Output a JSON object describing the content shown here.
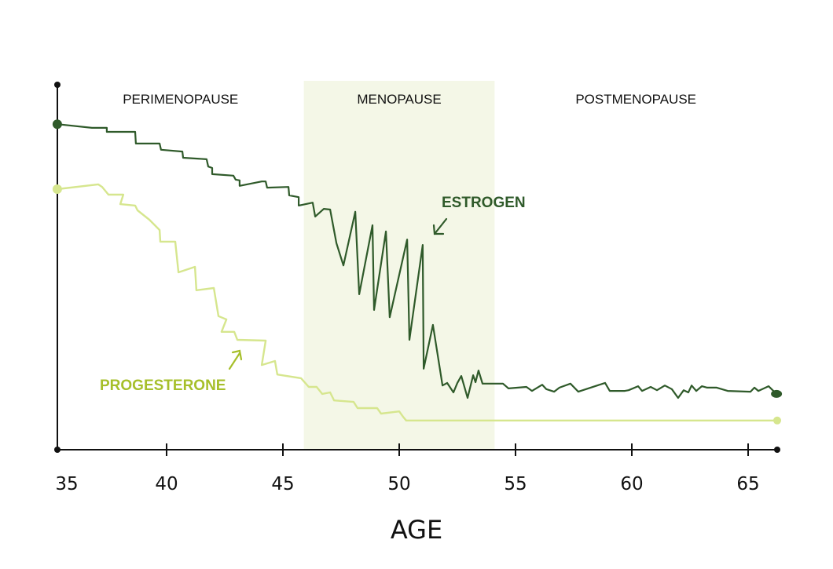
{
  "chart_data": {
    "type": "line",
    "title": "",
    "xlabel": "AGE",
    "ylabel": "",
    "xlim": [
      35.3,
      66.25
    ],
    "ylim": [
      0,
      100
    ],
    "x_ticks": [
      35,
      40,
      45,
      50,
      55,
      60,
      65
    ],
    "grid": false,
    "phases": [
      {
        "label": "PERIMENOPAUSE",
        "range": [
          35.3,
          45.9
        ],
        "shaded": false
      },
      {
        "label": "MENOPAUSE",
        "range": [
          45.9,
          54.1
        ],
        "shaded": true
      },
      {
        "label": "POSTMENOPAUSE",
        "range": [
          54.1,
          66.25
        ],
        "shaded": false
      }
    ],
    "colors": {
      "estrogen": "#2f5a2a",
      "progesterone_line": "#d6e68e",
      "progesterone_label": "#a6bf2a",
      "menopause_band": "#f4f7e7",
      "axis": "#111111"
    },
    "series": [
      {
        "name": "ESTROGEN",
        "points": [
          [
            35.3,
            89.2
          ],
          [
            36.79,
            88.2
          ],
          [
            37.43,
            88.2
          ],
          [
            37.43,
            87.1
          ],
          [
            38.65,
            87.1
          ],
          [
            38.68,
            83.9
          ],
          [
            39.7,
            83.9
          ],
          [
            39.76,
            82.2
          ],
          [
            40.68,
            81.7
          ],
          [
            40.71,
            80.0
          ],
          [
            41.72,
            79.6
          ],
          [
            41.79,
            77.6
          ],
          [
            41.96,
            77.2
          ],
          [
            41.96,
            75.5
          ],
          [
            42.87,
            75.1
          ],
          [
            42.97,
            74.0
          ],
          [
            43.14,
            73.8
          ],
          [
            43.14,
            72.3
          ],
          [
            44.09,
            73.5
          ],
          [
            44.26,
            73.5
          ],
          [
            44.32,
            71.8
          ],
          [
            45.24,
            72.0
          ],
          [
            45.27,
            69.7
          ],
          [
            45.68,
            69.2
          ],
          [
            45.68,
            66.9
          ],
          [
            46.28,
            67.7
          ],
          [
            46.39,
            63.9
          ],
          [
            46.76,
            66.0
          ],
          [
            47.03,
            65.8
          ],
          [
            47.3,
            56.6
          ],
          [
            47.6,
            50.5
          ],
          [
            48.11,
            65.2
          ],
          [
            48.28,
            42.6
          ],
          [
            48.85,
            61.5
          ],
          [
            48.92,
            38.3
          ],
          [
            49.43,
            59.8
          ],
          [
            49.59,
            36.3
          ],
          [
            50.34,
            57.6
          ],
          [
            50.44,
            30.1
          ],
          [
            51.01,
            56.1
          ],
          [
            51.05,
            22.2
          ],
          [
            51.45,
            34.2
          ],
          [
            51.86,
            17.6
          ],
          [
            52.06,
            18.3
          ],
          [
            52.33,
            15.7
          ],
          [
            52.5,
            18.3
          ],
          [
            52.67,
            20.2
          ],
          [
            52.94,
            14.2
          ],
          [
            53.18,
            20.4
          ],
          [
            53.28,
            18.5
          ],
          [
            53.41,
            21.7
          ],
          [
            53.58,
            18.1
          ],
          [
            54.46,
            18.1
          ],
          [
            54.7,
            16.8
          ],
          [
            55.47,
            17.2
          ],
          [
            55.71,
            16.1
          ],
          [
            56.15,
            17.8
          ],
          [
            56.32,
            16.6
          ],
          [
            56.66,
            15.9
          ],
          [
            56.89,
            17.0
          ],
          [
            57.36,
            18.1
          ],
          [
            57.7,
            15.9
          ],
          [
            58.85,
            18.3
          ],
          [
            59.05,
            16.1
          ],
          [
            59.7,
            16.1
          ],
          [
            59.86,
            16.3
          ],
          [
            60.27,
            17.4
          ],
          [
            60.44,
            16.1
          ],
          [
            60.81,
            17.2
          ],
          [
            61.08,
            16.3
          ],
          [
            61.42,
            17.6
          ],
          [
            61.72,
            16.6
          ],
          [
            61.99,
            14.2
          ],
          [
            62.23,
            16.3
          ],
          [
            62.43,
            15.7
          ],
          [
            62.57,
            17.6
          ],
          [
            62.77,
            16.1
          ],
          [
            63.01,
            17.4
          ],
          [
            63.24,
            17.0
          ],
          [
            63.65,
            17.0
          ],
          [
            64.12,
            16.1
          ],
          [
            65.1,
            15.9
          ],
          [
            65.27,
            17.0
          ],
          [
            65.44,
            16.1
          ],
          [
            65.88,
            17.4
          ],
          [
            66.22,
            15.3
          ]
        ]
      },
      {
        "name": "PROGESTERONE",
        "points": [
          [
            35.3,
            71.4
          ],
          [
            37.06,
            72.7
          ],
          [
            37.23,
            72.0
          ],
          [
            37.5,
            69.9
          ],
          [
            38.14,
            69.9
          ],
          [
            38.01,
            67.3
          ],
          [
            38.65,
            66.9
          ],
          [
            38.75,
            65.6
          ],
          [
            39.26,
            63.0
          ],
          [
            39.7,
            60.2
          ],
          [
            39.73,
            57.0
          ],
          [
            40.37,
            57.0
          ],
          [
            40.51,
            48.6
          ],
          [
            41.22,
            50.1
          ],
          [
            41.28,
            43.7
          ],
          [
            42.03,
            44.3
          ],
          [
            42.23,
            36.6
          ],
          [
            42.57,
            35.7
          ],
          [
            42.36,
            32.3
          ],
          [
            42.91,
            32.3
          ],
          [
            43.04,
            30.1
          ],
          [
            44.26,
            29.9
          ],
          [
            44.09,
            23.2
          ],
          [
            44.66,
            24.3
          ],
          [
            44.76,
            20.6
          ],
          [
            45.78,
            19.6
          ],
          [
            46.11,
            17.2
          ],
          [
            46.45,
            17.2
          ],
          [
            46.69,
            15.3
          ],
          [
            47.03,
            15.7
          ],
          [
            47.2,
            13.5
          ],
          [
            48.04,
            13.1
          ],
          [
            48.21,
            11.4
          ],
          [
            49.05,
            11.4
          ],
          [
            49.22,
            9.9
          ],
          [
            50.0,
            10.5
          ],
          [
            50.17,
            9.0
          ],
          [
            50.3,
            8.0
          ],
          [
            66.25,
            8.0
          ]
        ]
      }
    ]
  }
}
